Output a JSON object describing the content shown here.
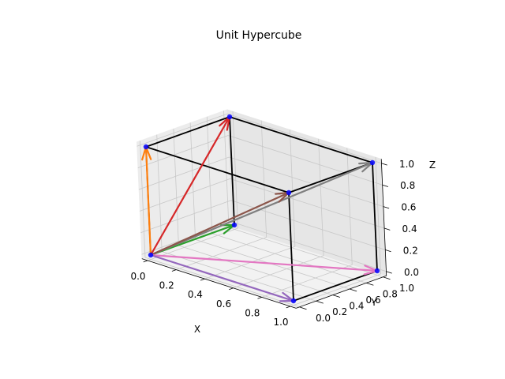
{
  "chart_data": {
    "type": "3d-vector-plot",
    "title": "Unit Hypercube",
    "xlabel": "X",
    "ylabel": "Y",
    "zlabel": "Z",
    "xlim": [
      0,
      1
    ],
    "ylim": [
      0,
      1
    ],
    "zlim": [
      0,
      1
    ],
    "grid": true,
    "x_ticks": [
      "0.0",
      "0.2",
      "0.4",
      "0.6",
      "0.8",
      "1.0"
    ],
    "y_ticks": [
      "0.0",
      "0.2",
      "0.4",
      "0.6",
      "0.8",
      "1.0"
    ],
    "z_ticks": [
      "0.0",
      "0.2",
      "0.4",
      "0.6",
      "0.8",
      "1.0"
    ],
    "vertices": [
      [
        0,
        0,
        0
      ],
      [
        1,
        0,
        0
      ],
      [
        0,
        1,
        0
      ],
      [
        0,
        0,
        1
      ],
      [
        1,
        1,
        0
      ],
      [
        1,
        0,
        1
      ],
      [
        0,
        1,
        1
      ],
      [
        1,
        1,
        1
      ]
    ],
    "edges": [
      [
        [
          0,
          0,
          1
        ],
        [
          0,
          1,
          1
        ]
      ],
      [
        [
          0,
          1,
          1
        ],
        [
          1,
          1,
          1
        ]
      ],
      [
        [
          0,
          0,
          1
        ],
        [
          1,
          0,
          1
        ]
      ],
      [
        [
          1,
          0,
          1
        ],
        [
          1,
          1,
          1
        ]
      ],
      [
        [
          0,
          1,
          0
        ],
        [
          0,
          1,
          1
        ]
      ],
      [
        [
          1,
          1,
          0
        ],
        [
          1,
          1,
          1
        ]
      ],
      [
        [
          1,
          0,
          0
        ],
        [
          1,
          0,
          1
        ]
      ],
      [
        [
          1,
          0,
          0
        ],
        [
          1,
          1,
          0
        ]
      ],
      [
        [
          0,
          0,
          0
        ],
        [
          0,
          0,
          1
        ]
      ]
    ],
    "vectors": [
      {
        "to": [
          0,
          0,
          1
        ],
        "color": "#ff7f0e"
      },
      {
        "to": [
          0,
          1,
          1
        ],
        "color": "#d62728"
      },
      {
        "to": [
          0,
          1,
          0
        ],
        "color": "#2ca02c"
      },
      {
        "to": [
          1,
          1,
          1
        ],
        "color": "#7f7f7f"
      },
      {
        "to": [
          1,
          0,
          1
        ],
        "color": "#8c564b"
      },
      {
        "to": [
          1,
          1,
          0
        ],
        "color": "#e377c2"
      },
      {
        "to": [
          1,
          0,
          0
        ],
        "color": "#9467bd"
      }
    ],
    "vertex_color": "#0000ff",
    "edge_color": "#000000"
  }
}
